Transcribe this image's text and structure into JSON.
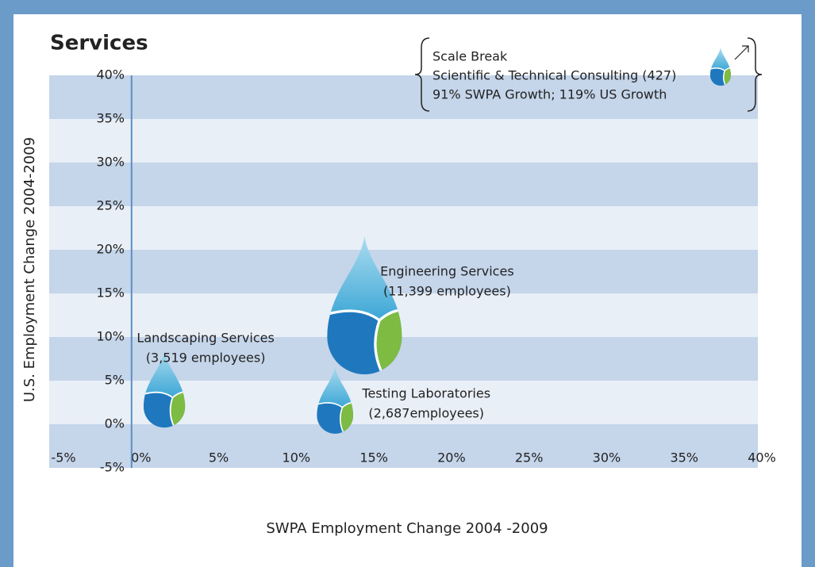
{
  "chart_data": {
    "type": "bubble",
    "title": "Services",
    "xlabel": "SWPA Employment Change 2004 -2009",
    "ylabel": "U.S. Employment Change 2004-2009",
    "labels": [
      "Landscaping Services",
      "Engineering Services",
      "Testing Laboratories"
    ],
    "x": [
      1.5,
      14.4,
      12.5
    ],
    "values": [
      2,
      10,
      1
    ],
    "sizes": [
      3519,
      11399,
      2687
    ],
    "size_labels": [
      "(3,519 employees)",
      "(11,399 employees)",
      "(2,687employees)"
    ],
    "xlim": [
      -5,
      40
    ],
    "ylim": [
      -5,
      40
    ],
    "xticks": [
      {
        "value": -5,
        "label": "-5%"
      },
      {
        "value": 0,
        "label": "0%"
      },
      {
        "value": 5,
        "label": "5%"
      },
      {
        "value": 10,
        "label": "10%"
      },
      {
        "value": 15,
        "label": "15%"
      },
      {
        "value": 20,
        "label": "20%"
      },
      {
        "value": 25,
        "label": "25%"
      },
      {
        "value": 30,
        "label": "30%"
      },
      {
        "value": 35,
        "label": "35%"
      },
      {
        "value": 40,
        "label": "40%"
      }
    ],
    "yticks": [
      {
        "value": -5,
        "label": "-5%"
      },
      {
        "value": 0,
        "label": "0%"
      },
      {
        "value": 5,
        "label": "5%"
      },
      {
        "value": 10,
        "label": "10%"
      },
      {
        "value": 15,
        "label": "15%"
      },
      {
        "value": 20,
        "label": "20%"
      },
      {
        "value": 25,
        "label": "25%"
      },
      {
        "value": 30,
        "label": "30%"
      },
      {
        "value": 35,
        "label": "35%"
      },
      {
        "value": 40,
        "label": "40%"
      }
    ],
    "annotations": [
      "Scale Break",
      "Scientific & Technical Consulting (427)",
      "91% SWPA Growth; 119% US Growth"
    ],
    "grid": true
  }
}
